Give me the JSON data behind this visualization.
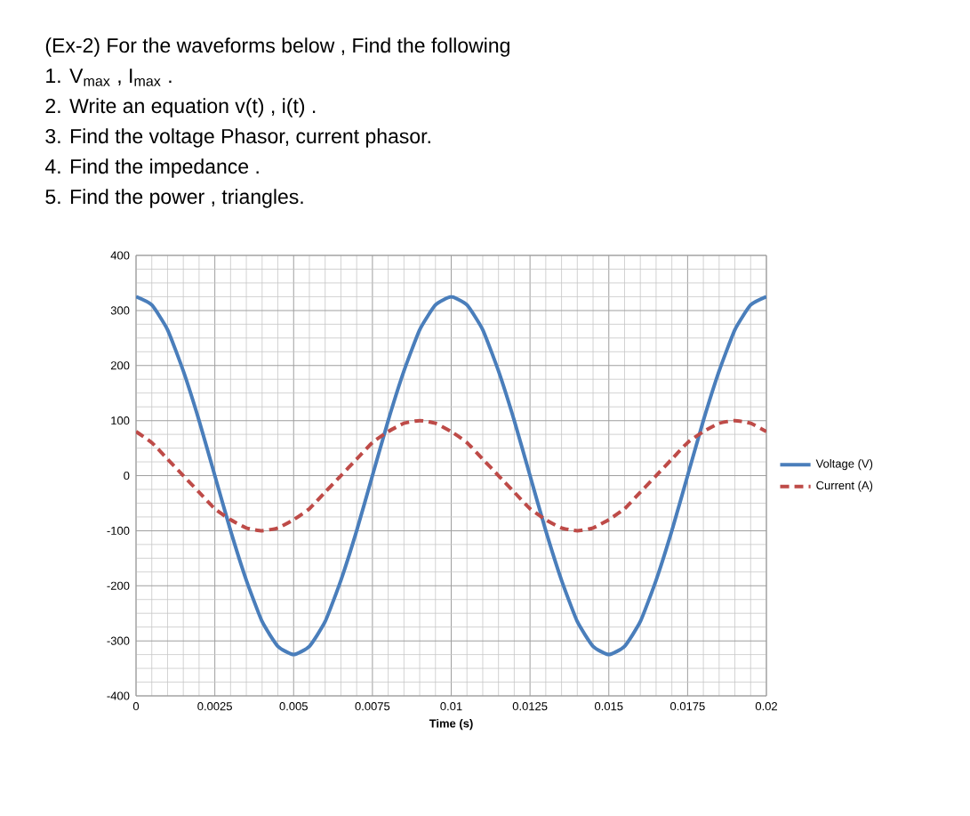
{
  "chart_data": {
    "type": "line",
    "title": "(Ex-2)  For the waveforms below , Find the following",
    "annotations": [
      "1.   V$_{max}$  , I$_{max}$ .",
      "2.   Write  an equation    v(t)  , i(t)  .",
      "3.   Find the voltage Phasor, current phasor.",
      "4.   Find the impedance .",
      "5.   Find the power , triangles."
    ],
    "xlabel": "Time  (s)",
    "x": [
      0,
      0.0005,
      0.001,
      0.0015,
      0.002,
      0.0025,
      0.003,
      0.0035,
      0.004,
      0.0045,
      0.005,
      0.0055,
      0.006,
      0.0065,
      0.007,
      0.0075,
      0.008,
      0.0085,
      0.009,
      0.0095,
      0.01,
      0.0105,
      0.011,
      0.0115,
      0.012,
      0.0125,
      0.013,
      0.0135,
      0.014,
      0.0145,
      0.015,
      0.0155,
      0.016,
      0.0165,
      0.017,
      0.0175,
      0.018,
      0.0185,
      0.019,
      0.0195,
      0.02
    ],
    "series": [
      {
        "name": "Voltage  (V)",
        "color": "#4a7ebb",
        "line_style": "solid",
        "values": [
          325,
          310,
          265,
          190,
          100,
          0,
          -100,
          -190,
          -265,
          -310,
          -325,
          -310,
          -265,
          -190,
          -100,
          0,
          100,
          190,
          265,
          310,
          325,
          310,
          265,
          190,
          100,
          0,
          -100,
          -190,
          -265,
          -310,
          -325,
          -310,
          -265,
          -190,
          -100,
          0,
          100,
          190,
          265,
          310,
          325
        ]
      },
      {
        "name": "Current (A)",
        "color": "#be4b48",
        "line_style": "dashed",
        "values": [
          80,
          60,
          30,
          0,
          -30,
          -60,
          -80,
          -95,
          -100,
          -95,
          -80,
          -60,
          -30,
          0,
          30,
          60,
          80,
          95,
          100,
          95,
          80,
          60,
          30,
          0,
          -30,
          -60,
          -80,
          -95,
          -100,
          -95,
          -80,
          -60,
          -30,
          0,
          30,
          60,
          80,
          95,
          100,
          95,
          80
        ]
      }
    ],
    "xlim": [
      0,
      0.02
    ],
    "xticks": [
      0,
      0.0025,
      0.005,
      0.0075,
      0.01,
      0.0125,
      0.015,
      0.0175,
      0.02
    ],
    "ylim": [
      -400,
      400
    ],
    "yticks": [
      -400,
      -300,
      -200,
      -100,
      0,
      100,
      200,
      300,
      400
    ],
    "grid": true,
    "legend": "right"
  }
}
